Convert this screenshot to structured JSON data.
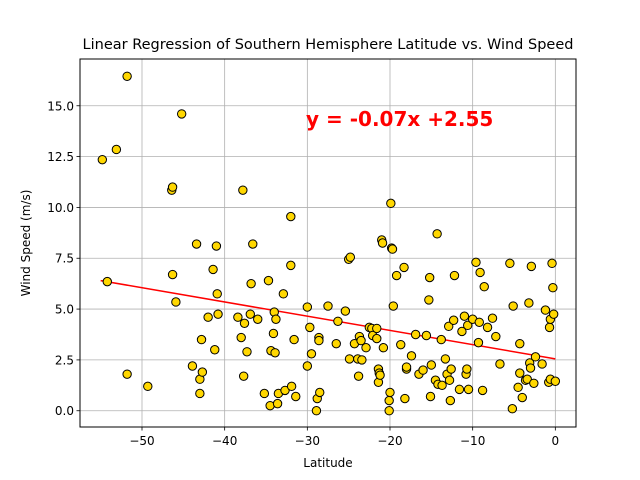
{
  "chart_data": {
    "type": "scatter",
    "title": "Linear Regression of Southern Hemisphere Latitude vs. Wind Speed",
    "xlabel": "Latitude",
    "ylabel": "Wind Speed (m/s)",
    "xlim": [
      -57.5,
      2.5
    ],
    "ylim": [
      -0.8,
      17.3
    ],
    "x_ticks": [
      -50,
      -40,
      -30,
      -20,
      -10,
      0
    ],
    "x_tick_labels": [
      "−50",
      "−40",
      "−30",
      "−20",
      "−10",
      "0"
    ],
    "y_ticks": [
      0.0,
      2.5,
      5.0,
      7.5,
      10.0,
      12.5,
      15.0
    ],
    "y_tick_labels": [
      "0.0",
      "2.5",
      "5.0",
      "7.5",
      "10.0",
      "12.5",
      "15.0"
    ],
    "grid": true,
    "marker_fill": "#FFD700",
    "marker_edge": "#000000",
    "regression": {
      "equation": "y = -0.07x +2.55",
      "slope": -0.07,
      "intercept": 2.55,
      "x_range": [
        -55,
        0
      ],
      "color": "#FF0000",
      "label_color": "#FF0000"
    },
    "points": [
      [
        -54.8,
        12.35
      ],
      [
        -54.2,
        6.35
      ],
      [
        -53.1,
        12.85
      ],
      [
        -51.8,
        16.45
      ],
      [
        -51.8,
        1.8
      ],
      [
        -49.3,
        1.2
      ],
      [
        -46.4,
        10.85
      ],
      [
        -46.3,
        11.0
      ],
      [
        -46.3,
        6.7
      ],
      [
        -45.9,
        5.35
      ],
      [
        -45.2,
        14.6
      ],
      [
        -43.9,
        2.2
      ],
      [
        -43.4,
        8.2
      ],
      [
        -43.0,
        0.85
      ],
      [
        -43.0,
        1.55
      ],
      [
        -42.8,
        3.5
      ],
      [
        -42.7,
        1.9
      ],
      [
        -42.0,
        4.6
      ],
      [
        -41.4,
        6.95
      ],
      [
        -41.2,
        3.0
      ],
      [
        -41.0,
        8.1
      ],
      [
        -40.9,
        5.75
      ],
      [
        -40.8,
        4.75
      ],
      [
        -38.4,
        4.6
      ],
      [
        -38.0,
        3.6
      ],
      [
        -37.8,
        10.85
      ],
      [
        -37.7,
        1.7
      ],
      [
        -37.6,
        4.3
      ],
      [
        -37.3,
        2.9
      ],
      [
        -36.9,
        4.75
      ],
      [
        -36.8,
        6.25
      ],
      [
        -36.6,
        8.2
      ],
      [
        -36.0,
        4.5
      ],
      [
        -35.2,
        0.85
      ],
      [
        -34.7,
        6.4
      ],
      [
        -34.5,
        0.25
      ],
      [
        -34.4,
        2.95
      ],
      [
        -34.1,
        3.8
      ],
      [
        -34.0,
        4.85
      ],
      [
        -33.9,
        2.85
      ],
      [
        -33.8,
        4.5
      ],
      [
        -33.6,
        0.35
      ],
      [
        -33.5,
        0.85
      ],
      [
        -32.9,
        5.75
      ],
      [
        -32.7,
        1.0
      ],
      [
        -32.0,
        9.55
      ],
      [
        -32.0,
        7.15
      ],
      [
        -31.9,
        1.2
      ],
      [
        -31.6,
        3.5
      ],
      [
        -31.4,
        0.7
      ],
      [
        -30.0,
        2.2
      ],
      [
        -30.0,
        5.1
      ],
      [
        -29.7,
        4.1
      ],
      [
        -29.5,
        2.8
      ],
      [
        -28.9,
        0.0
      ],
      [
        -28.8,
        0.6
      ],
      [
        -28.6,
        3.6
      ],
      [
        -28.6,
        3.45
      ],
      [
        -28.5,
        0.9
      ],
      [
        -27.5,
        5.15
      ],
      [
        -26.5,
        3.3
      ],
      [
        -26.3,
        4.4
      ],
      [
        -25.4,
        4.9
      ],
      [
        -25.0,
        7.45
      ],
      [
        -24.9,
        2.55
      ],
      [
        -24.8,
        7.55
      ],
      [
        -24.3,
        3.3
      ],
      [
        -23.9,
        2.55
      ],
      [
        -23.8,
        1.7
      ],
      [
        -23.7,
        3.65
      ],
      [
        -23.5,
        3.45
      ],
      [
        -23.4,
        2.5
      ],
      [
        -22.9,
        3.1
      ],
      [
        -22.5,
        4.1
      ],
      [
        -22.2,
        4.05
      ],
      [
        -22.1,
        3.7
      ],
      [
        -21.6,
        3.55
      ],
      [
        -21.6,
        4.05
      ],
      [
        -21.4,
        2.05
      ],
      [
        -21.4,
        1.4
      ],
      [
        -21.3,
        1.85
      ],
      [
        -21.2,
        1.75
      ],
      [
        -21.0,
        8.4
      ],
      [
        -20.9,
        8.25
      ],
      [
        -20.8,
        3.1
      ],
      [
        -20.1,
        0.0
      ],
      [
        -20.1,
        0.5
      ],
      [
        -20.0,
        0.9
      ],
      [
        -19.9,
        10.2
      ],
      [
        -19.8,
        8.0
      ],
      [
        -19.7,
        7.95
      ],
      [
        -19.6,
        5.15
      ],
      [
        -19.2,
        6.65
      ],
      [
        -18.7,
        3.25
      ],
      [
        -18.3,
        7.05
      ],
      [
        -18.2,
        0.6
      ],
      [
        -18.0,
        2.05
      ],
      [
        -18.0,
        2.15
      ],
      [
        -17.4,
        2.7
      ],
      [
        -16.9,
        3.75
      ],
      [
        -16.5,
        1.8
      ],
      [
        -16.0,
        2.0
      ],
      [
        -15.6,
        3.7
      ],
      [
        -15.3,
        5.45
      ],
      [
        -15.2,
        6.55
      ],
      [
        -15.1,
        0.7
      ],
      [
        -15.0,
        2.25
      ],
      [
        -14.5,
        1.5
      ],
      [
        -14.3,
        8.7
      ],
      [
        -14.2,
        1.3
      ],
      [
        -13.8,
        3.5
      ],
      [
        -13.7,
        1.25
      ],
      [
        -13.3,
        2.55
      ],
      [
        -13.1,
        1.8
      ],
      [
        -12.9,
        4.15
      ],
      [
        -12.8,
        1.5
      ],
      [
        -12.7,
        0.5
      ],
      [
        -12.6,
        2.05
      ],
      [
        -12.3,
        4.45
      ],
      [
        -12.2,
        6.65
      ],
      [
        -11.6,
        1.05
      ],
      [
        -11.3,
        3.9
      ],
      [
        -11.0,
        4.65
      ],
      [
        -10.8,
        1.8
      ],
      [
        -10.7,
        2.05
      ],
      [
        -10.6,
        4.2
      ],
      [
        -10.5,
        1.05
      ],
      [
        -10.0,
        4.5
      ],
      [
        -9.6,
        7.3
      ],
      [
        -9.3,
        3.35
      ],
      [
        -9.2,
        4.35
      ],
      [
        -9.1,
        6.8
      ],
      [
        -8.8,
        1.0
      ],
      [
        -8.6,
        6.1
      ],
      [
        -8.2,
        4.1
      ],
      [
        -7.6,
        4.55
      ],
      [
        -7.2,
        3.65
      ],
      [
        -6.7,
        2.3
      ],
      [
        -5.5,
        7.25
      ],
      [
        -5.2,
        0.1
      ],
      [
        -5.1,
        5.15
      ],
      [
        -4.5,
        1.15
      ],
      [
        -4.3,
        1.85
      ],
      [
        -4.3,
        3.3
      ],
      [
        -4.0,
        0.65
      ],
      [
        -3.6,
        1.5
      ],
      [
        -3.4,
        1.55
      ],
      [
        -3.2,
        5.3
      ],
      [
        -3.1,
        2.35
      ],
      [
        -3.0,
        2.1
      ],
      [
        -2.9,
        7.1
      ],
      [
        -2.6,
        1.35
      ],
      [
        -2.4,
        2.65
      ],
      [
        -1.6,
        2.3
      ],
      [
        -1.2,
        4.95
      ],
      [
        -0.8,
        1.4
      ],
      [
        -0.7,
        4.1
      ],
      [
        -0.6,
        1.55
      ],
      [
        -0.6,
        4.5
      ],
      [
        -0.4,
        7.25
      ],
      [
        -0.3,
        6.05
      ],
      [
        -0.2,
        4.75
      ],
      [
        0.0,
        1.45
      ]
    ]
  }
}
